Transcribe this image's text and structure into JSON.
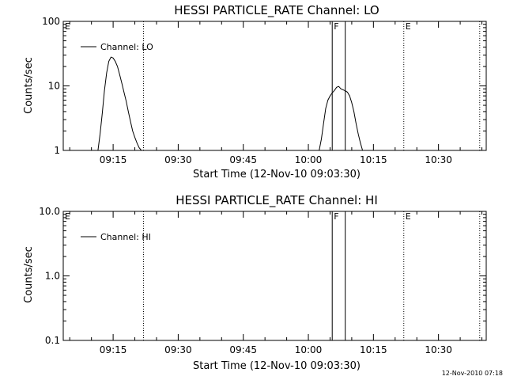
{
  "chart_data": [
    {
      "type": "line",
      "title": "HESSI PARTICLE_RATE Channel: LO",
      "xlabel": "Start Time (12-Nov-10 09:03:30)",
      "ylabel": "Counts/sec",
      "yscale": "log",
      "xlim": [
        "09:03:30",
        "10:41:00"
      ],
      "ylim": [
        1,
        100
      ],
      "xticks": [
        "09:15",
        "09:30",
        "09:45",
        "10:00",
        "10:15",
        "10:30"
      ],
      "yticks": [
        "1",
        "10",
        "100"
      ],
      "legend": {
        "label": "Channel: LO",
        "position": "top-left"
      },
      "markers": [
        {
          "label": "E",
          "time": "09:03:30",
          "style": "none"
        },
        {
          "label": "",
          "time": "09:22:00",
          "style": "dotted"
        },
        {
          "label": "F",
          "time": "10:05:30",
          "style": "solid"
        },
        {
          "label": "",
          "time": "10:08:30",
          "style": "solid"
        },
        {
          "label": "E",
          "time": "10:22:00",
          "style": "dotted"
        },
        {
          "label": "",
          "time": "10:39:30",
          "style": "dotted"
        }
      ],
      "series": [
        {
          "name": "Channel: LO",
          "segments": [
            {
              "x": [
                "09:11:30",
                "09:12:00",
                "09:12:30",
                "09:13:00",
                "09:13:30",
                "09:14:00",
                "09:14:30",
                "09:15:00",
                "09:15:30",
                "09:16:00",
                "09:16:30",
                "09:17:00",
                "09:17:30",
                "09:18:00",
                "09:18:30",
                "09:19:00",
                "09:19:30",
                "09:20:00",
                "09:20:30",
                "09:21:00",
                "09:21:30"
              ],
              "y": [
                1.0,
                1.8,
                3.8,
                8.5,
                16,
                24,
                28,
                27,
                24,
                20,
                15,
                11,
                8.0,
                5.8,
                4.0,
                2.8,
                2.0,
                1.6,
                1.3,
                1.1,
                1.0
              ]
            },
            {
              "x": [
                "10:02:30",
                "10:03:00",
                "10:03:30",
                "10:04:00",
                "10:04:30",
                "10:05:00",
                "10:05:30",
                "10:06:00",
                "10:06:30",
                "10:07:00",
                "10:07:30",
                "10:08:00",
                "10:08:30",
                "10:09:00",
                "10:09:30",
                "10:10:00",
                "10:10:30",
                "10:11:00",
                "10:11:30",
                "10:12:00",
                "10:12:30"
              ],
              "y": [
                1.0,
                1.5,
                2.6,
                4.5,
                6.0,
                7.0,
                7.8,
                8.5,
                9.5,
                9.8,
                9.0,
                8.7,
                8.4,
                8.0,
                7.0,
                5.5,
                4.0,
                2.6,
                1.8,
                1.3,
                1.0
              ]
            }
          ]
        }
      ]
    },
    {
      "type": "line",
      "title": "HESSI PARTICLE_RATE Channel: HI",
      "xlabel": "Start Time (12-Nov-10 09:03:30)",
      "ylabel": "Counts/sec",
      "yscale": "log",
      "xlim": [
        "09:03:30",
        "10:41:00"
      ],
      "ylim": [
        0.1,
        10
      ],
      "xticks": [
        "09:15",
        "09:30",
        "09:45",
        "10:00",
        "10:15",
        "10:30"
      ],
      "yticks": [
        "0.1",
        "1.0",
        "10.0"
      ],
      "legend": {
        "label": "Channel: HI",
        "position": "top-left"
      },
      "markers": [
        {
          "label": "E",
          "time": "09:03:30",
          "style": "none"
        },
        {
          "label": "",
          "time": "09:22:00",
          "style": "dotted"
        },
        {
          "label": "F",
          "time": "10:05:30",
          "style": "solid"
        },
        {
          "label": "",
          "time": "10:08:30",
          "style": "solid"
        },
        {
          "label": "E",
          "time": "10:22:00",
          "style": "dotted"
        },
        {
          "label": "",
          "time": "10:39:30",
          "style": "dotted"
        }
      ],
      "series": [
        {
          "name": "Channel: HI",
          "segments": []
        }
      ]
    }
  ],
  "footer": {
    "timestamp": "12-Nov-2010 07:18"
  }
}
